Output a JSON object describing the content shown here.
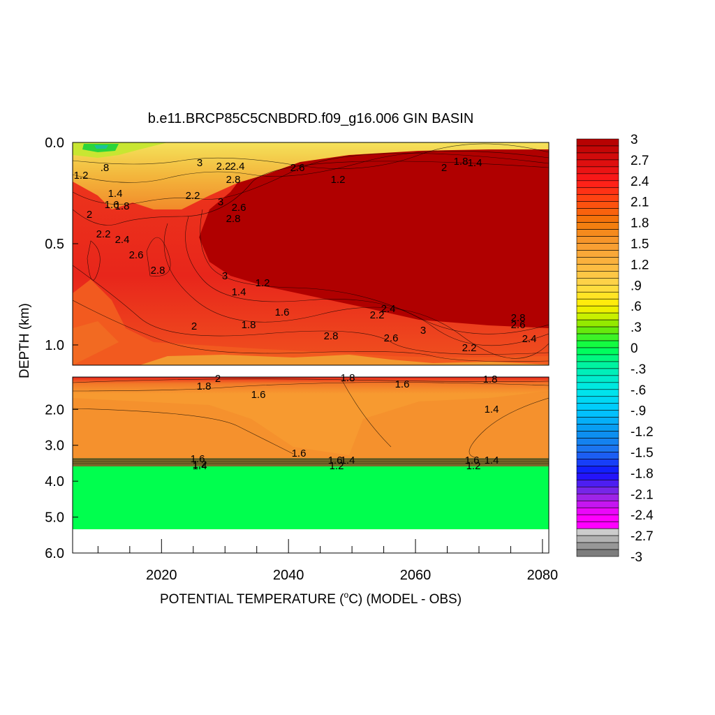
{
  "chart_data": {
    "type": "heatmap",
    "title": "b.e11.BRCP85C5CNBDRD.f09_g16.006 GIN BASIN",
    "xlabel": "POTENTIAL TEMPERATURE (",
    "xlabel_degree": "o",
    "xlabel_rest": "C) (MODEL - OBS)",
    "ylabel": "DEPTH (km)",
    "xlim": [
      2006,
      2081
    ],
    "x_ticks": [
      "2020",
      "2040",
      "2060",
      "2080"
    ],
    "upper_panel": {
      "ylim": [
        0.0,
        1.1
      ],
      "y_ticks": [
        "0.0",
        "0.5",
        "1.0"
      ],
      "contour_labels": [
        "1.2",
        ".8",
        "1.4",
        "1.6",
        "1.8",
        "2",
        "2.2",
        "2.4",
        "2.6",
        "2.8",
        "3",
        "1.2",
        "1.4",
        "1.6",
        "1.8",
        "2",
        "2.2",
        "2.4",
        "2.6",
        "2.8",
        "3",
        "2.2",
        "2.4",
        "2.6",
        "2.8",
        "3",
        "2.2",
        "2.4",
        "2.6",
        "2.8",
        "3",
        "2.6",
        "2.8",
        "2.2",
        "2",
        "1.8",
        "1.4",
        "1.2"
      ]
    },
    "lower_panel": {
      "ylim": [
        1.1,
        6.0
      ],
      "y_ticks": [
        "2.0",
        "3.0",
        "4.0",
        "5.0",
        "6.0"
      ],
      "contour_labels": [
        "1.8",
        "2",
        "1.6",
        "1.8",
        "1.6",
        "1.8",
        "1.4",
        "1.6",
        "1.6",
        "1.4",
        "1.2",
        "1.6",
        "1.4",
        "1.2",
        "1.6",
        "1.4",
        "1.2"
      ]
    },
    "colorbar": {
      "labels": [
        "3",
        "2.7",
        "2.4",
        "2.1",
        "1.8",
        "1.5",
        "1.2",
        ".9",
        ".6",
        ".3",
        "0",
        "-.3",
        "-.6",
        "-.9",
        "-1.2",
        "-1.5",
        "-1.8",
        "-2.1",
        "-2.4",
        "-2.7",
        "-3"
      ],
      "range": [
        -3,
        3
      ]
    },
    "colors": {
      "deep_red": "#b00000",
      "red": "#e8261b",
      "orange_red": "#f25a1f",
      "orange": "#f7a030",
      "bottom_green": "#00ff4e"
    }
  }
}
